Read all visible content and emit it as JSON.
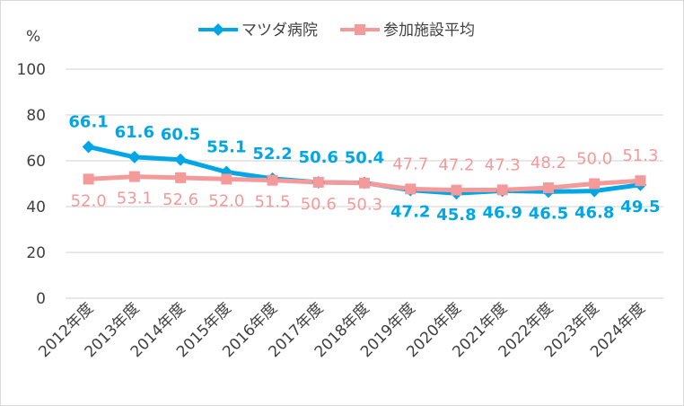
{
  "chart_data": {
    "type": "line",
    "ylabel": "%",
    "ylim": [
      0,
      100
    ],
    "yticks": [
      0,
      20,
      40,
      60,
      80,
      100
    ],
    "grid": true,
    "legend_position": "top",
    "categories": [
      "2012年度",
      "2013年度",
      "2014年度",
      "2015年度",
      "2016年度",
      "2017年度",
      "2018年度",
      "2019年度",
      "2020年度",
      "2021年度",
      "2022年度",
      "2023年度",
      "2024年度"
    ],
    "series": [
      {
        "name": "マツダ病院",
        "color": "#00a6e6",
        "marker": "diamond",
        "values": [
          66.1,
          61.6,
          60.5,
          55.1,
          52.2,
          50.6,
          50.4,
          47.2,
          45.8,
          46.9,
          46.5,
          46.8,
          49.5
        ]
      },
      {
        "name": "参加施設平均",
        "color": "#f59a9a",
        "marker": "square",
        "values": [
          52.0,
          53.1,
          52.6,
          52.0,
          51.5,
          50.6,
          50.3,
          47.7,
          47.2,
          47.3,
          48.2,
          50.0,
          51.3
        ]
      }
    ]
  }
}
